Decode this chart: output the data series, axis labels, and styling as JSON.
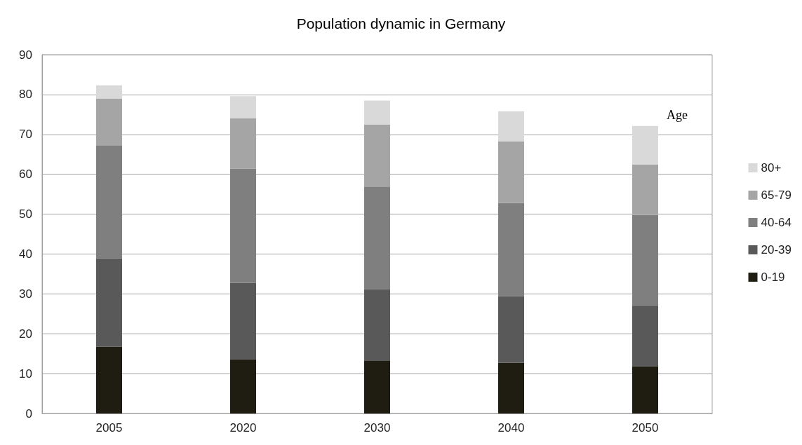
{
  "chart_data": {
    "type": "bar",
    "title": "Population dynamic in Germany",
    "legend_title": "Age",
    "categories": [
      "2005",
      "2020",
      "2030",
      "2040",
      "2050"
    ],
    "stacked": true,
    "series": [
      {
        "name": "0-19",
        "color": "#1f1d12",
        "values": [
          16.8,
          13.6,
          13.2,
          12.7,
          11.8
        ]
      },
      {
        "name": "20-39",
        "color": "#595959",
        "values": [
          22.1,
          19.2,
          18.0,
          16.7,
          15.3
        ]
      },
      {
        "name": "40-64",
        "color": "#7f7f7f",
        "values": [
          28.4,
          28.6,
          25.7,
          23.4,
          22.7
        ]
      },
      {
        "name": "65-79",
        "color": "#a5a5a5",
        "values": [
          11.7,
          12.6,
          15.6,
          15.5,
          12.6
        ]
      },
      {
        "name": "80+",
        "color": "#d9d9d9",
        "values": [
          3.3,
          5.6,
          6.0,
          7.5,
          9.7
        ]
      }
    ],
    "ylim": [
      0,
      90
    ],
    "yticks": [
      0,
      10,
      20,
      30,
      40,
      50,
      60,
      70,
      80,
      90
    ],
    "grid": "y",
    "legend": "right"
  }
}
